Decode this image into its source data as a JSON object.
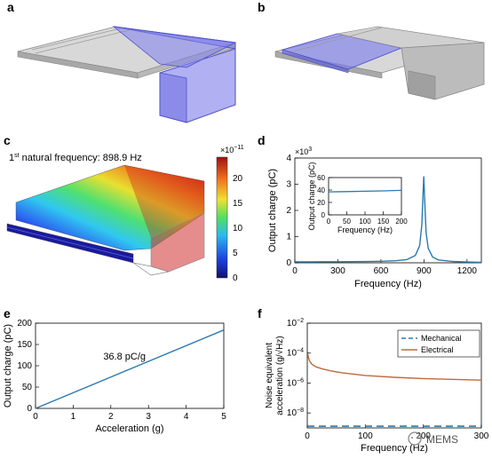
{
  "panels": {
    "a": "a",
    "b": "b",
    "c": "c",
    "d": "d",
    "e": "e",
    "f": "f"
  },
  "c_title": {
    "pre": "1",
    "sup": "st",
    "post": " natural frequency: 898.9 Hz"
  },
  "colorbar": {
    "exp_base": "×10",
    "exp_sup": "−11",
    "ticks": [
      "20",
      "15",
      "10",
      "5",
      "0"
    ]
  },
  "colors": {
    "accent_blue": "#6f6fe8",
    "plot_blue": "#2a7ab0",
    "plot_orange": "#c06a3a",
    "mech_dash": "#2a7ab0"
  },
  "watermark": "MEMS",
  "chart_data": [
    {
      "type": "line",
      "panel": "d",
      "xlabel": "Frequency (Hz)",
      "ylabel": "Output charge (pC)",
      "y_multiplier_base": "×10",
      "y_multiplier_sup": "3",
      "xlim": [
        0,
        1300
      ],
      "ylim": [
        0,
        4
      ],
      "xticks": [
        0,
        300,
        600,
        900,
        1200
      ],
      "yticks": [
        0,
        1,
        2,
        3,
        4
      ],
      "series": [
        {
          "x": [
            0,
            100,
            200,
            300,
            400,
            500,
            600,
            700,
            780,
            840,
            870,
            885,
            893,
            898.9,
            905,
            915,
            930,
            960,
            1000,
            1100,
            1200,
            1300
          ],
          "y": [
            0.037,
            0.038,
            0.039,
            0.041,
            0.044,
            0.049,
            0.058,
            0.078,
            0.12,
            0.28,
            0.65,
            1.45,
            2.6,
            3.3,
            2.4,
            1.15,
            0.55,
            0.22,
            0.11,
            0.05,
            0.03,
            0.02
          ]
        }
      ],
      "inset": {
        "xlabel": "Frequency (Hz)",
        "ylabel": "Output charge (pC)",
        "xlim": [
          0,
          200
        ],
        "ylim": [
          0,
          60
        ],
        "xticks": [
          0,
          50,
          100,
          150,
          200
        ],
        "yticks": [
          0,
          20,
          40,
          60
        ],
        "series": [
          {
            "x": [
              0,
              50,
              100,
              150,
              200
            ],
            "y": [
              37,
              37.5,
              38,
              38.6,
              39.4
            ]
          }
        ]
      }
    },
    {
      "type": "line",
      "panel": "e",
      "xlabel": "Acceleration (g)",
      "ylabel": "Output charge (pC)",
      "xlim": [
        0,
        5
      ],
      "ylim": [
        0,
        200
      ],
      "xticks": [
        0,
        1,
        2,
        3,
        4,
        5
      ],
      "yticks": [
        0,
        50,
        100,
        150,
        200
      ],
      "annotation": "36.8 pC/g",
      "series": [
        {
          "x": [
            0,
            5
          ],
          "y": [
            0,
            184
          ]
        }
      ]
    },
    {
      "type": "line",
      "panel": "f",
      "xlabel": "Frequency (Hz)",
      "ylabel_line1": "Noise equivalent",
      "ylabel_line2": "acceleration (g/√Hz)",
      "yscale": "log",
      "xlim": [
        0,
        300
      ],
      "ylim": [
        1e-09,
        0.01
      ],
      "xticks": [
        0,
        100,
        200,
        300
      ],
      "yticks": [
        {
          "base": "10",
          "exp": "−8",
          "v": -8
        },
        {
          "base": "10",
          "exp": "−6",
          "v": -6
        },
        {
          "base": "10",
          "exp": "−4",
          "v": -4
        },
        {
          "base": "10",
          "exp": "−2",
          "v": -2
        }
      ],
      "legend_position": "top-right",
      "series": [
        {
          "name": "Mechanical",
          "style": "dashed",
          "x": [
            0,
            300
          ],
          "y": [
            1.3e-09,
            1.3e-09
          ]
        },
        {
          "name": "Electrical",
          "style": "solid",
          "x": [
            1,
            2,
            4,
            8,
            15,
            25,
            40,
            60,
            100,
            150,
            200,
            250,
            300
          ],
          "y": [
            9e-05,
            5e-05,
            3e-05,
            1.8e-05,
            1.2e-05,
            9e-06,
            6.5e-06,
            4.8e-06,
            3.2e-06,
            2.4e-06,
            2e-06,
            1.75e-06,
            1.55e-06
          ]
        }
      ]
    }
  ]
}
